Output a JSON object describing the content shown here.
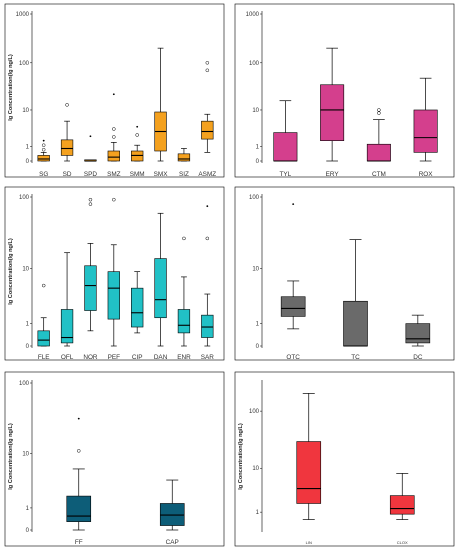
{
  "chart_data": [
    {
      "type": "boxplot",
      "ylabel": "lg Concentration(lg ng/L)",
      "yscale": "log1p",
      "yticks": [
        "0",
        "1",
        "10",
        "100",
        "1000"
      ],
      "ymax": 1000,
      "color": "#F4A11F",
      "categories": [
        "SG",
        "SD",
        "SPD",
        "SMZ",
        "SMM",
        "SMX",
        "SIZ",
        "ASMZ"
      ],
      "boxes": [
        {
          "min": 0,
          "q1": 0,
          "median": 0.1,
          "q3": 0.3,
          "max": 0.5,
          "outliers_circle": [
            0.7,
            1.1
          ],
          "outliers_star": [
            1.6
          ]
        },
        {
          "min": 0,
          "q1": 0.3,
          "median": 0.8,
          "q3": 1.7,
          "max": 5.5,
          "outliers_circle": [
            13
          ],
          "outliers_star": []
        },
        {
          "min": 0,
          "q1": 0,
          "median": 0,
          "q3": 0,
          "max": 0,
          "outliers_circle": [],
          "outliers_star": [
            2.2
          ]
        },
        {
          "min": 0,
          "q1": 0,
          "median": 0.2,
          "q3": 0.6,
          "max": 1.4,
          "outliers_circle": [
            2.1,
            3.5
          ],
          "outliers_star": [
            22
          ]
        },
        {
          "min": 0,
          "q1": 0,
          "median": 0.3,
          "q3": 0.6,
          "max": 1.1,
          "outliers_circle": [
            2.4
          ],
          "outliers_star": [
            4
          ]
        },
        {
          "min": 0,
          "q1": 0.6,
          "median": 3,
          "q3": 9,
          "max": 200,
          "outliers_circle": [],
          "outliers_star": []
        },
        {
          "min": 0,
          "q1": 0,
          "median": 0.1,
          "q3": 0.4,
          "max": 0.8,
          "outliers_circle": [],
          "outliers_star": []
        },
        {
          "min": 0.5,
          "q1": 1.8,
          "median": 3,
          "q3": 5.5,
          "max": 8,
          "outliers_circle": [
            70,
            100
          ],
          "outliers_star": []
        }
      ]
    },
    {
      "type": "boxplot",
      "ylabel": "",
      "yscale": "log1p",
      "yticks": [
        "0",
        "1",
        "10",
        "100",
        "1000"
      ],
      "ymax": 1000,
      "color": "#D43F8D",
      "categories": [
        "TYL",
        "ERY",
        "CTM",
        "ROX"
      ],
      "boxes": [
        {
          "min": 0,
          "q1": 0,
          "median": 0,
          "q3": 2.8,
          "max": 16,
          "outliers_circle": [],
          "outliers_star": []
        },
        {
          "min": 0,
          "q1": 1.6,
          "median": 10,
          "q3": 35,
          "max": 200,
          "outliers_circle": [],
          "outliers_star": []
        },
        {
          "min": 0,
          "q1": 0,
          "median": 0,
          "q3": 1.2,
          "max": 6,
          "outliers_circle": [
            8.5,
            10
          ],
          "outliers_star": []
        },
        {
          "min": 0,
          "q1": 0.5,
          "median": 2,
          "q3": 10,
          "max": 48,
          "outliers_circle": [],
          "outliers_star": []
        }
      ]
    },
    {
      "type": "boxplot",
      "ylabel": "lg Concentration(lg ng/L)",
      "yscale": "log1p",
      "yticks": [
        "0",
        "1",
        "10",
        "100"
      ],
      "ymax": 100,
      "color": "#21C1C6",
      "categories": [
        "FLE",
        "OFL",
        "NOR",
        "PEF",
        "CIP",
        "DAN",
        "ENR",
        "SAR"
      ],
      "boxes": [
        {
          "min": 0,
          "q1": 0,
          "median": 0.2,
          "q3": 0.6,
          "max": 1.4,
          "outliers_circle": [
            5.5
          ],
          "outliers_star": []
        },
        {
          "min": 0,
          "q1": 0.1,
          "median": 0.3,
          "q3": 2.1,
          "max": 17,
          "outliers_circle": [],
          "outliers_star": []
        },
        {
          "min": 0.6,
          "q1": 2,
          "median": 5.5,
          "q3": 11,
          "max": 23,
          "outliers_circle": [
            80,
            92
          ],
          "outliers_star": []
        },
        {
          "min": 0,
          "q1": 1.3,
          "median": 5,
          "q3": 9,
          "max": 22,
          "outliers_circle": [
            92
          ],
          "outliers_star": []
        },
        {
          "min": 0.5,
          "q1": 0.8,
          "median": 1.8,
          "q3": 5,
          "max": 9,
          "outliers_circle": [],
          "outliers_star": []
        },
        {
          "min": 0,
          "q1": 1.4,
          "median": 3.2,
          "q3": 14,
          "max": 60,
          "outliers_circle": [],
          "outliers_star": []
        },
        {
          "min": 0,
          "q1": 0.5,
          "median": 0.9,
          "q3": 2.1,
          "max": 7.5,
          "outliers_circle": [
            27
          ],
          "outliers_star": []
        },
        {
          "min": 0,
          "q1": 0.3,
          "median": 0.8,
          "q3": 1.6,
          "max": 4,
          "outliers_circle": [
            27
          ],
          "outliers_star": [
            75
          ]
        }
      ]
    },
    {
      "type": "boxplot",
      "ylabel": "",
      "yscale": "log1p",
      "yticks": [
        "0",
        "1",
        "10",
        "100"
      ],
      "ymax": 100,
      "color": "#6A6A6A",
      "categories": [
        "OTC",
        "TC",
        "DC"
      ],
      "boxes": [
        {
          "min": 0.7,
          "q1": 1.5,
          "median": 2.2,
          "q3": 3.6,
          "max": 6.5,
          "outliers_circle": [],
          "outliers_star": [
            80
          ]
        },
        {
          "min": 0,
          "q1": 0,
          "median": 0,
          "q3": 3,
          "max": 26,
          "outliers_circle": [],
          "outliers_star": []
        },
        {
          "min": 0,
          "q1": 0.1,
          "median": 0.25,
          "q3": 1,
          "max": 1.6,
          "outliers_circle": [],
          "outliers_star": []
        }
      ]
    },
    {
      "type": "boxplot",
      "ylabel": "lg Concentration(lg ng/L)",
      "yscale": "log1p",
      "yticks": [
        "0",
        "1",
        "10",
        "100"
      ],
      "ymax": 100,
      "color": "#0D5D78",
      "categories": [
        "FF",
        "CAP"
      ],
      "boxes": [
        {
          "min": 0,
          "q1": 0.3,
          "median": 0.55,
          "q3": 1.9,
          "max": 5.8,
          "outliers_circle": [
            11
          ],
          "outliers_star": [
            32
          ]
        },
        {
          "min": 0,
          "q1": 0.15,
          "median": 0.6,
          "q3": 1.3,
          "max": 3.8,
          "outliers_circle": [],
          "outliers_star": []
        }
      ]
    },
    {
      "type": "boxplot",
      "ylabel": "lg Concentration(lg ng/L)",
      "yscale": "log1p",
      "yticks": [
        "1",
        "10",
        "100"
      ],
      "ymax": 300,
      "color": "#F0363E",
      "categories": [
        "LIN",
        "CLOX"
      ],
      "boxes": [
        {
          "min": 0.5,
          "q1": 1.8,
          "median": 4,
          "q3": 30,
          "max": 200,
          "outliers_circle": [],
          "outliers_star": []
        },
        {
          "min": 0.5,
          "q1": 0.85,
          "median": 1.3,
          "q3": 2.8,
          "max": 8,
          "outliers_circle": [],
          "outliers_star": []
        }
      ]
    }
  ]
}
